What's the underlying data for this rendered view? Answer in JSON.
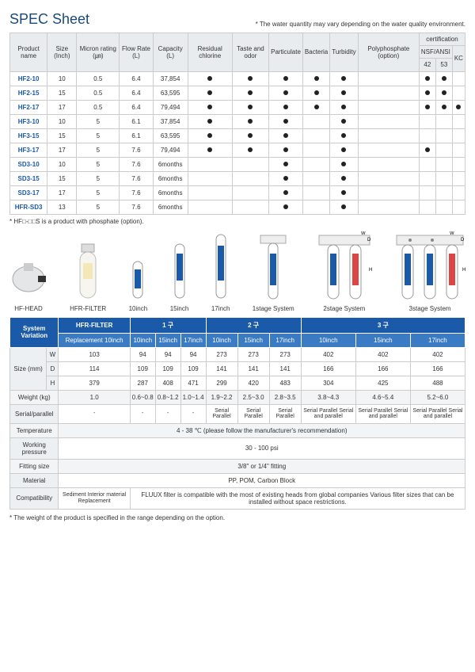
{
  "title": "SPEC Sheet",
  "topnote": "* The water quantity may vary depending on the water quality environment.",
  "spec_head": {
    "c0": "Product name",
    "c1": "Size (Inch)",
    "c2": "Micron rating (㎛)",
    "c3": "Flow Rate (L)",
    "c4": "Capacity (L)",
    "c5": "Residual chlorine",
    "c6": "Taste and odor",
    "c7": "Particulate",
    "c8": "Bacteria",
    "c9": "Turbidity",
    "c10": "Polyphosphate (option)",
    "cert": "certification",
    "nsf": "NSF/ANSI",
    "n42": "42",
    "n53": "53",
    "kc": "KC"
  },
  "rows": [
    {
      "n": "HF2-10",
      "s": "10",
      "m": "0.5",
      "f": "6.4",
      "c": "37,854",
      "d": [
        1,
        1,
        1,
        1,
        1,
        0,
        1,
        1,
        0
      ]
    },
    {
      "n": "HF2-15",
      "s": "15",
      "m": "0.5",
      "f": "6.4",
      "c": "63,595",
      "d": [
        1,
        1,
        1,
        1,
        1,
        0,
        1,
        1,
        0
      ]
    },
    {
      "n": "HF2-17",
      "s": "17",
      "m": "0.5",
      "f": "6.4",
      "c": "79,494",
      "d": [
        1,
        1,
        1,
        1,
        1,
        0,
        1,
        1,
        1
      ]
    },
    {
      "n": "HF3-10",
      "s": "10",
      "m": "5",
      "f": "6.1",
      "c": "37,854",
      "d": [
        1,
        1,
        1,
        0,
        1,
        0,
        0,
        0,
        0
      ]
    },
    {
      "n": "HF3-15",
      "s": "15",
      "m": "5",
      "f": "6.1",
      "c": "63,595",
      "d": [
        1,
        1,
        1,
        0,
        1,
        0,
        0,
        0,
        0
      ]
    },
    {
      "n": "HF3-17",
      "s": "17",
      "m": "5",
      "f": "7.6",
      "c": "79,494",
      "d": [
        1,
        1,
        1,
        0,
        1,
        0,
        1,
        0,
        0
      ]
    },
    {
      "n": "SD3-10",
      "s": "10",
      "m": "5",
      "f": "7.6",
      "c": "6months",
      "d": [
        0,
        0,
        1,
        0,
        1,
        0,
        0,
        0,
        0
      ]
    },
    {
      "n": "SD3-15",
      "s": "15",
      "m": "5",
      "f": "7.6",
      "c": "6months",
      "d": [
        0,
        0,
        1,
        0,
        1,
        0,
        0,
        0,
        0
      ]
    },
    {
      "n": "SD3-17",
      "s": "17",
      "m": "5",
      "f": "7.6",
      "c": "6months",
      "d": [
        0,
        0,
        1,
        0,
        1,
        0,
        0,
        0,
        0
      ]
    },
    {
      "n": "HFR-SD3",
      "s": "13",
      "m": "5",
      "f": "7.6",
      "c": "6months",
      "d": [
        0,
        0,
        1,
        0,
        1,
        0,
        0,
        0,
        0
      ]
    }
  ],
  "phosnote": "* HF□-□□S is a product with phosphate (option).",
  "plabels": [
    "HF-HEAD",
    "HFR-FILTER",
    "10inch",
    "15inch",
    "17inch",
    "1stage System",
    "2stage System",
    "3stage System"
  ],
  "sys": {
    "h0": "System Variation",
    "h1": "HFR-FILTER",
    "h2": "1 구",
    "h3": "2 구",
    "h4": "3 구",
    "rep": "Replacement 10inch",
    "i10": "10inch",
    "i15": "15inch",
    "i17": "17inch",
    "size": "Size (mm)",
    "W": "W",
    "D": "D",
    "H": "H",
    "wt": "Weight (kg)",
    "sp": "Serial/parallel",
    "temp": "Temperature",
    "press": "Working pressure",
    "fit": "Fitting size",
    "mat": "Material",
    "comp": "Compatibility",
    "tempv": "4 - 38 ℃ (please follow the manufacturer's recommendation)",
    "pressv": "30 - 100 psi",
    "fitv": "3/8\" or 1/4\" fitting",
    "matv": "PP, POM, Carbon Block",
    "compv1": "Sediment Interior material Replacement",
    "compv2": "FLUUX filter is compatible with the most of existing heads from global companies Various filter sizes that can be installed without space restrictions."
  },
  "size_rows": [
    {
      "l": "W",
      "v": [
        "103",
        "94",
        "94",
        "94",
        "273",
        "273",
        "273",
        "402",
        "402",
        "402"
      ]
    },
    {
      "l": "D",
      "v": [
        "114",
        "109",
        "109",
        "109",
        "141",
        "141",
        "141",
        "166",
        "166",
        "166"
      ]
    },
    {
      "l": "H",
      "v": [
        "379",
        "287",
        "408",
        "471",
        "299",
        "420",
        "483",
        "304",
        "425",
        "488"
      ]
    }
  ],
  "weight": [
    "1.0",
    "0.6~0.8",
    "0.8~1.2",
    "1.0~1.4",
    "1.9~2.2",
    "2.5~3.0",
    "2.8~3.5",
    "3.8~4.3",
    "4.6~5.4",
    "5.2~6.0"
  ],
  "sp": [
    "-",
    "-",
    "-",
    "-",
    "Serial Parallel",
    "Serial Parallel",
    "Serial Parallel",
    "Serial Parallel Serial and parallel",
    "Serial Parallel Serial and parallel",
    "Serial Parallel Serial and parallel"
  ],
  "foot2": "* The weight of the product is specified in the range depending on the option."
}
